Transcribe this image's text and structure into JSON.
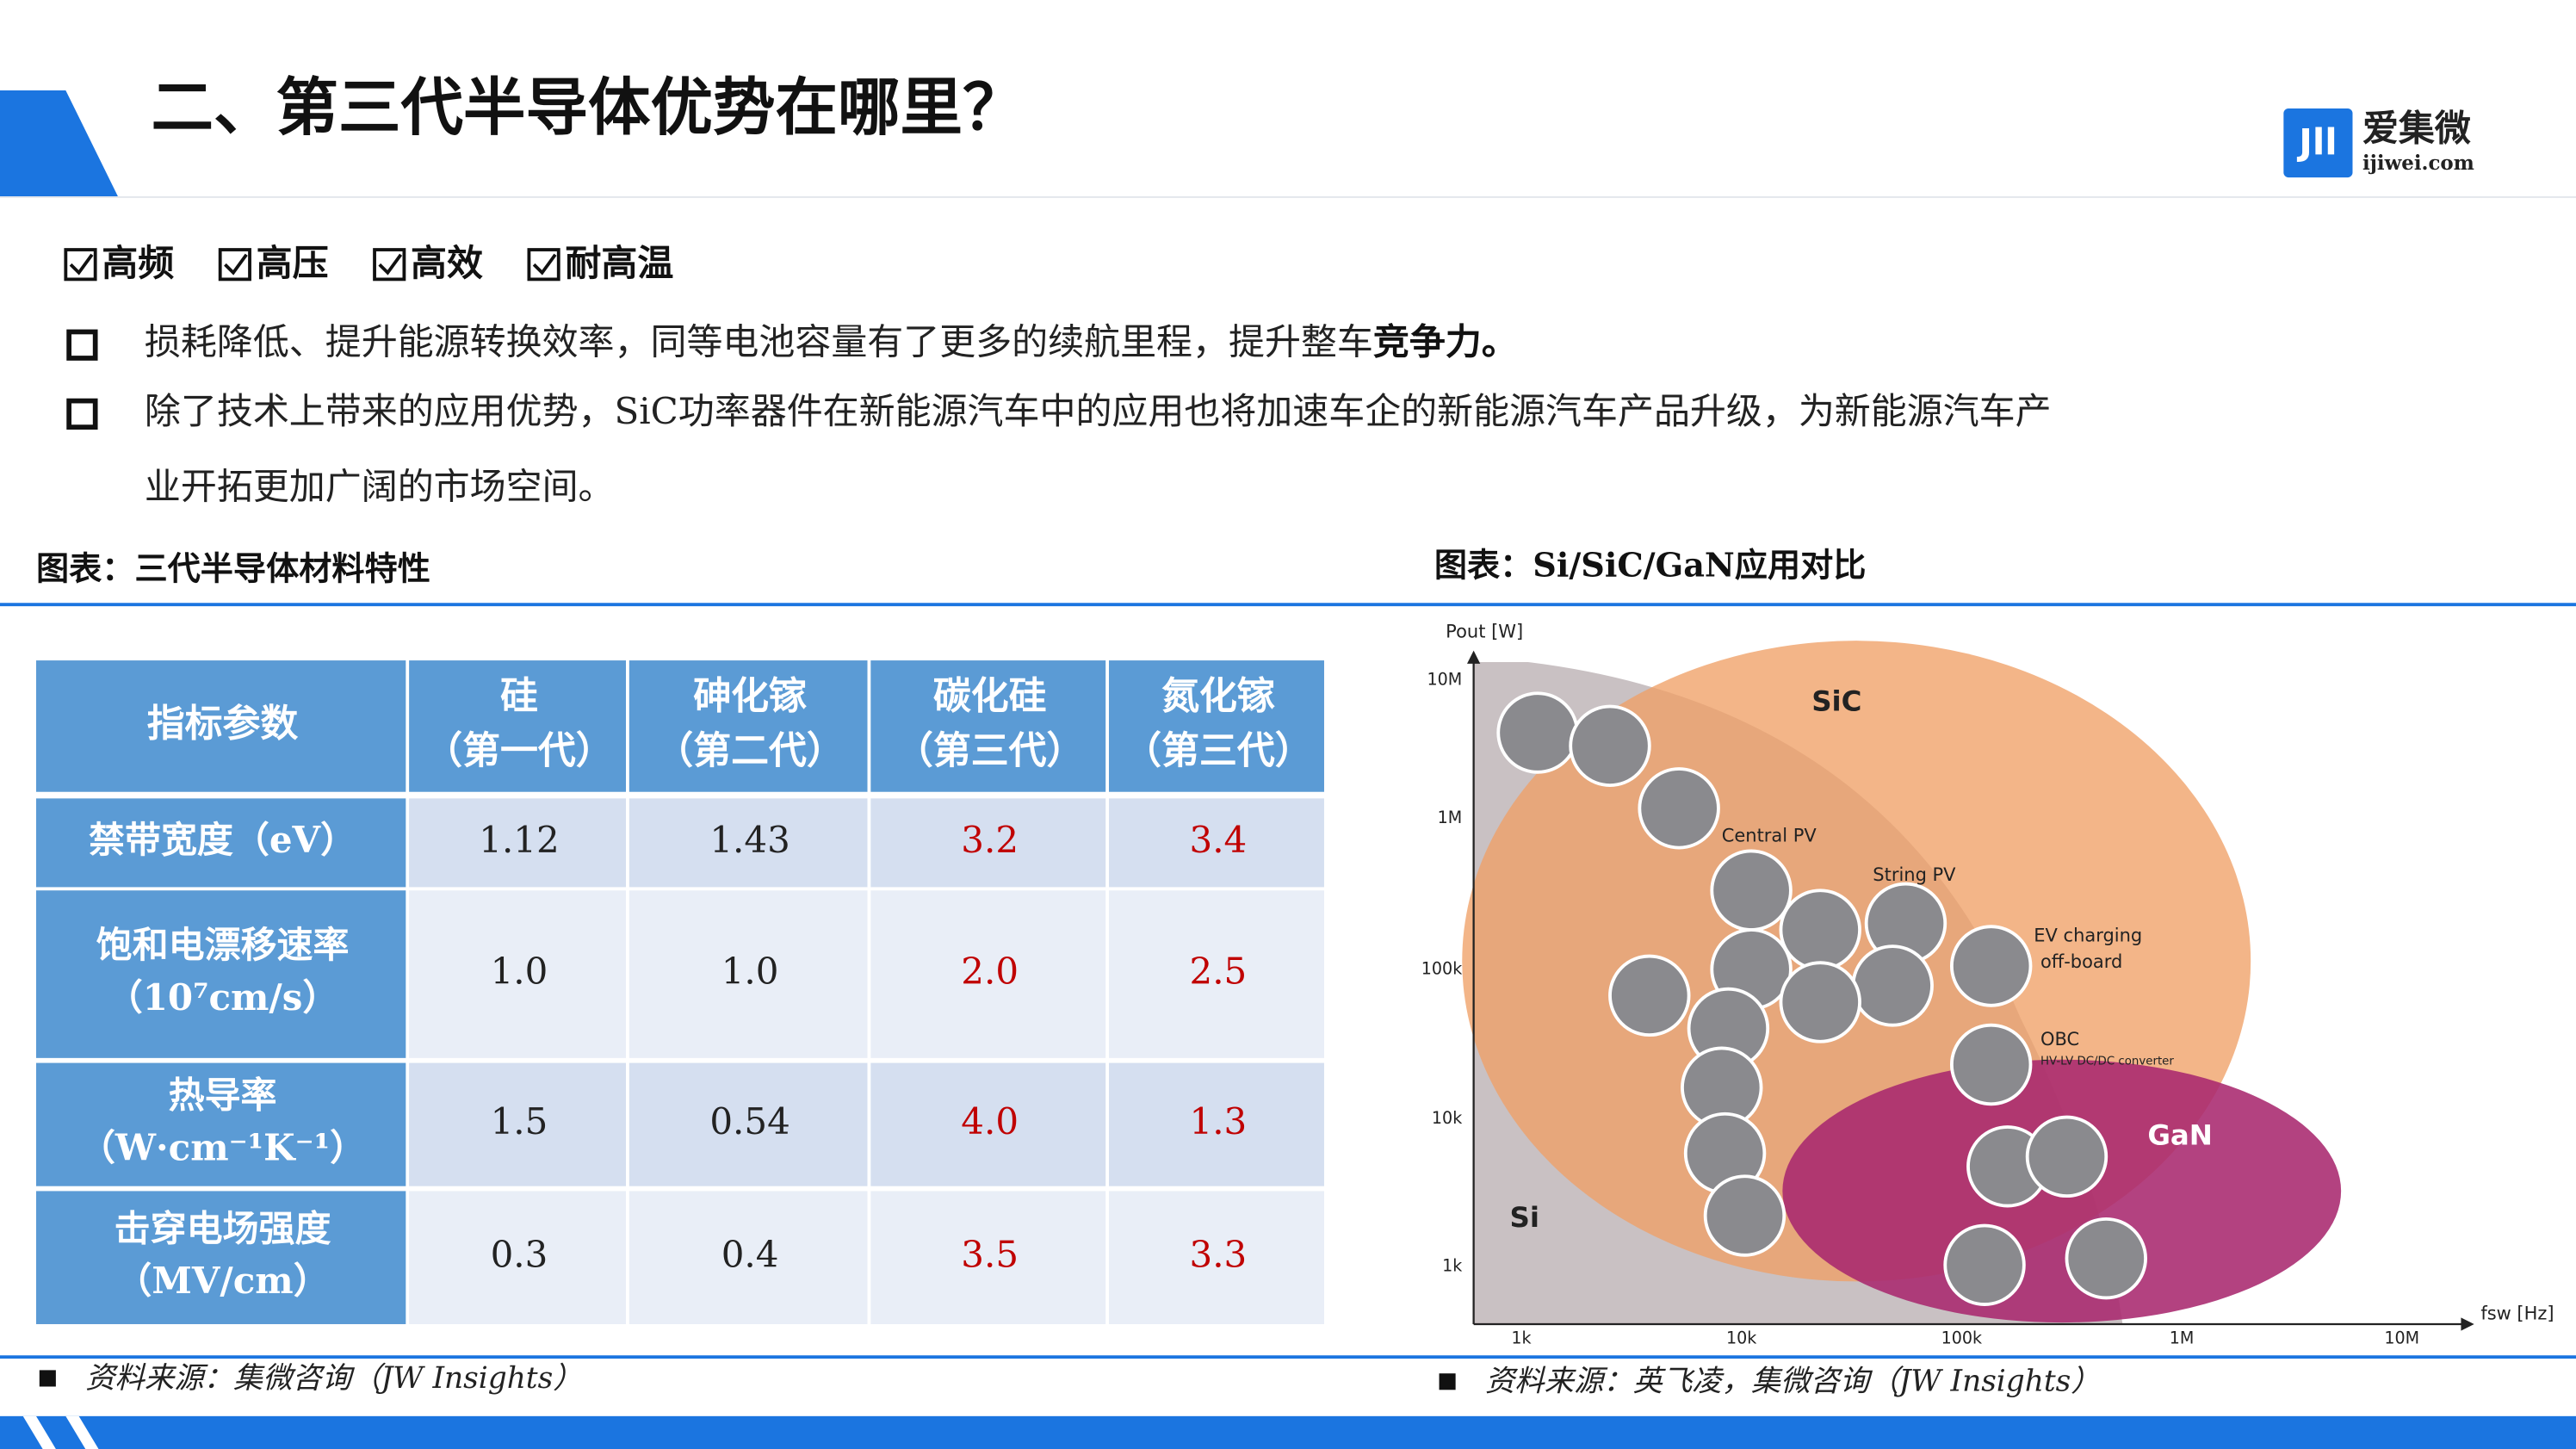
{
  "header": {
    "title": "二、第三代半导体优势在哪里？",
    "logo": {
      "mark": "Jll",
      "name": "爱集微",
      "url": "ijiwei.com"
    }
  },
  "checks": [
    "高频",
    "高压",
    "高效",
    "耐高温"
  ],
  "bullets": [
    {
      "lines": [
        "损耗降低、提升能源转换效率，同等电池容量有了更多的续航里程，提升整车"
      ],
      "bold": "竞争力。"
    },
    {
      "lines": [
        "除了技术上带来的应用优势，SiC功率器件在新能源汽车中的应用也将加速车企的新能源汽车产品升级，为新能源汽车产",
        "业开拓更加广阔的市场空间。"
      ]
    }
  ],
  "left_panel": {
    "caption": "图表：三代半导体材料特性",
    "table": {
      "header": [
        [
          "指标参数"
        ],
        [
          "硅",
          "（第一代）"
        ],
        [
          "砷化镓",
          "（第二代）"
        ],
        [
          "碳化硅",
          "（第三代）"
        ],
        [
          "氮化镓",
          "（第三代）"
        ]
      ],
      "rows": [
        {
          "label": [
            "禁带宽度（eV）"
          ],
          "cells": [
            "1.12",
            "1.43",
            "3.2",
            "3.4"
          ]
        },
        {
          "label": [
            "饱和电漂移速率",
            "（10⁷cm/s）"
          ],
          "cells": [
            "1.0",
            "1.0",
            "2.0",
            "2.5"
          ]
        },
        {
          "label": [
            "热导率",
            "（W·cm⁻¹K⁻¹）"
          ],
          "cells": [
            "1.5",
            "0.54",
            "4.0",
            "1.3"
          ]
        },
        {
          "label": [
            "击穿电场强度",
            "（MV/cm）"
          ],
          "cells": [
            "0.3",
            "0.4",
            "3.5",
            "3.3"
          ]
        }
      ]
    },
    "source": "资料来源：集微咨询（JW  Insights）"
  },
  "right_panel": {
    "caption": "图表：Si/SiC/GaN应用对比",
    "diagram": {
      "y_label": "Pout [W]",
      "y_ticks": [
        "10M",
        "1M",
        "100k",
        "10k",
        "1k"
      ],
      "x_label": "fsw [Hz]",
      "x_ticks": [
        "1k",
        "10k",
        "100k",
        "1M",
        "10M"
      ],
      "regions": [
        "SiC",
        "GaN",
        "Si"
      ],
      "applications": [
        "Central PV",
        "String PV",
        "EV charging",
        "off-board",
        "OBC",
        "HV-LV DC/DC converter"
      ]
    },
    "source": "资料来源：英飞凌，集微咨询（JW  Insights）"
  }
}
